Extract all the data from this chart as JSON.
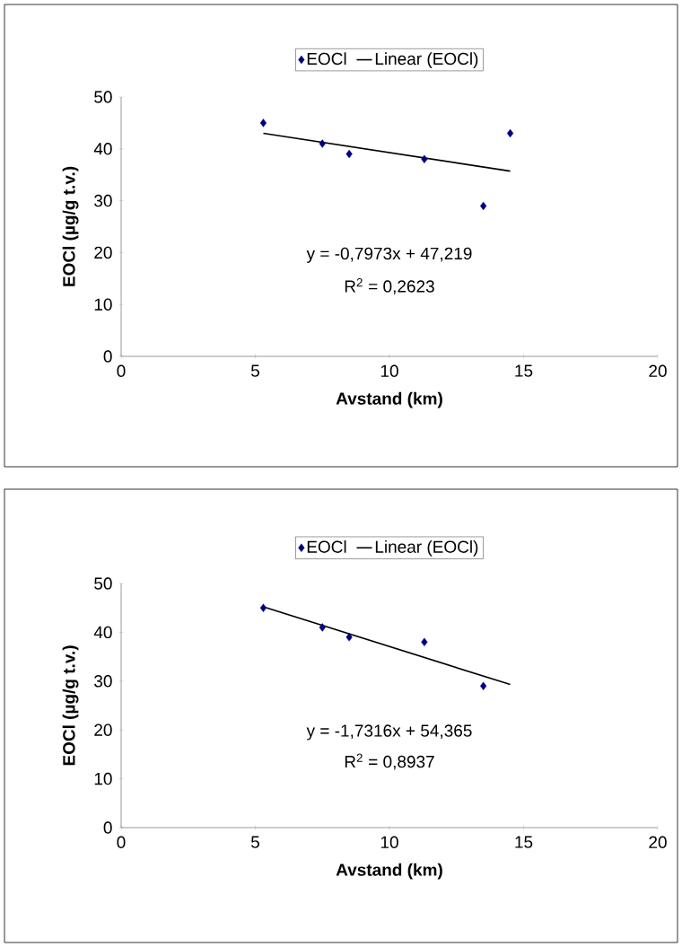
{
  "chart_data": [
    {
      "type": "scatter",
      "xlabel": "Avstand (km)",
      "ylabel": "EOCl (µg/g t.v.)",
      "xlim": [
        0,
        20
      ],
      "ylim": [
        0,
        50
      ],
      "xticks": [
        0,
        5,
        10,
        15,
        20
      ],
      "yticks": [
        0,
        10,
        20,
        30,
        40,
        50
      ],
      "legend": "top",
      "series": [
        {
          "name": "EOCl",
          "color": "#000080",
          "marker": "diamond",
          "x": [
            5.3,
            7.5,
            8.5,
            11.3,
            13.5,
            14.5
          ],
          "values": [
            45,
            41,
            39,
            38,
            29,
            43
          ]
        },
        {
          "name": "Linear (EOCl)",
          "type": "line",
          "color": "#000000",
          "marker": "none",
          "x": [
            5.3,
            14.5
          ],
          "values": [
            43,
            35.7
          ]
        }
      ],
      "annotations": [
        "y = -0,7973x + 47,219",
        "R$^{2}$ = 0,2623"
      ]
    },
    {
      "type": "scatter",
      "xlabel": "Avstand (km)",
      "ylabel": "EOCl (µg/g t.v.)",
      "xlim": [
        0,
        20
      ],
      "ylim": [
        0,
        50
      ],
      "xticks": [
        0,
        5,
        10,
        15,
        20
      ],
      "yticks": [
        0,
        10,
        20,
        30,
        40,
        50
      ],
      "legend": "top",
      "series": [
        {
          "name": "EOCl",
          "color": "#000080",
          "marker": "diamond",
          "x": [
            5.3,
            7.5,
            8.5,
            11.3,
            13.5
          ],
          "values": [
            45,
            41,
            39,
            38,
            29
          ]
        },
        {
          "name": "Linear (EOCl)",
          "type": "line",
          "color": "#000000",
          "marker": "none",
          "x": [
            5.3,
            14.5
          ],
          "values": [
            45.2,
            29.3
          ]
        }
      ],
      "annotations": [
        "y = -1,7316x + 54,365",
        "R$^{2}$ = 0,8937"
      ]
    }
  ]
}
